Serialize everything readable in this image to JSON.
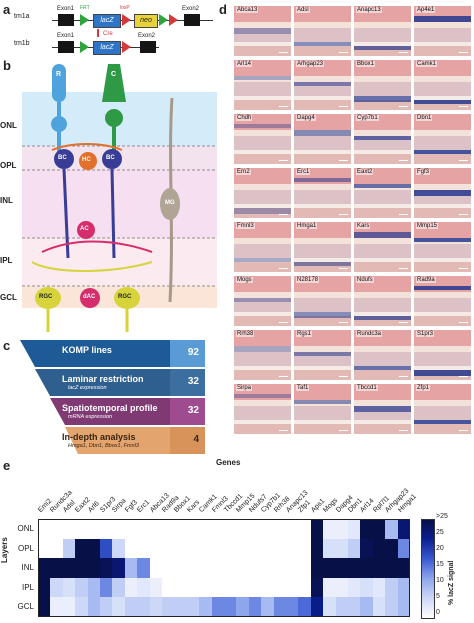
{
  "panels": {
    "a": "a",
    "b": "b",
    "c": "c",
    "d": "d",
    "e": "e"
  },
  "panel_a": {
    "tm1a": {
      "label": "tm1a",
      "exon1": "Exon1",
      "exon2": "Exon2",
      "lacz": "lacZ",
      "neo": "neo",
      "frt": "FRT",
      "loxp": "loxP"
    },
    "arrow": "Cre",
    "tm1b": {
      "label": "tm1b",
      "exon1": "Exon1",
      "exon2": "Exon2",
      "lacz": "lacZ"
    }
  },
  "panel_b": {
    "layers": [
      "ONL",
      "OPL",
      "INL",
      "IPL",
      "GCL"
    ],
    "cells": {
      "rod": "R",
      "cone": "C",
      "bc": "BC",
      "hc": "HC",
      "mg": "MG",
      "ac": "AC",
      "rgc": "RGC",
      "dac": "dAC"
    }
  },
  "panel_c": {
    "levels": [
      {
        "title": "KOMP lines",
        "subtitle": "",
        "count": "92"
      },
      {
        "title": "Laminar restriction",
        "subtitle": "lacZ expression",
        "count": "32"
      },
      {
        "title": "Spatiotemporal profile",
        "subtitle": "mRNA expression",
        "count": "32"
      },
      {
        "title": "In-depth analysis",
        "subtitle": "Hmga1, Dbn1, Bbox1, Fmnl3",
        "count": "4"
      }
    ],
    "colors": [
      "#5b9bd5",
      "#3c6ea0",
      "#9e4c8f",
      "#d8935a"
    ]
  },
  "panel_d": {
    "genes": [
      "Abca13",
      "Adsl",
      "Anapc13",
      "Ap4e1",
      "Arl14",
      "Arhgap23",
      "Bbox1",
      "Camk1",
      "Chdh",
      "Dapg4",
      "Cyp7b1",
      "Dbn1",
      "Ern2",
      "Erc1",
      "Eaxt2",
      "Fgf3",
      "Fmnl3",
      "Hmga1",
      "Kars",
      "Mmp15",
      "Mogs",
      "N28178",
      "Ndufs",
      "Rad9a",
      "Rrh38",
      "Rgs1",
      "Rundc3a",
      "S1pr3",
      "Sirpa",
      "Taf1",
      "Tbccd1",
      "Zfp1"
    ]
  },
  "panel_e": {
    "title": "Genes",
    "row_axis": "Layers",
    "rows": [
      "ONL",
      "OPL",
      "INL",
      "IPL",
      "GCL"
    ],
    "columns": [
      "Emi2",
      "Rundc3a",
      "Adsl",
      "Eaxt2",
      "Arl6",
      "S1pr3",
      "Sirpa",
      "Fgf3",
      "Erc1",
      "Abca13",
      "Rad9a",
      "Bbox1",
      "Kars",
      "Camk1",
      "Fmnl3",
      "Tbccd1",
      "Mmp15",
      "Ndufs7",
      "Cyp7b1",
      "Rrh38",
      "Anapc13",
      "Zfp1",
      "Aps1",
      "Mogs",
      "Dapg4",
      "Dbn1",
      "Arl14",
      "Rpl7l1",
      "Arhgap23",
      "Hmga1"
    ],
    "colorbar_label": "% lacZ signal",
    "colorbar_ticks": [
      ">25",
      "25",
      "20",
      "15",
      "10",
      "5",
      "0"
    ]
  },
  "chart_data": {
    "type": "heatmap",
    "title": "Genes",
    "xlabel": "Genes",
    "ylabel": "Layers",
    "rows": [
      "ONL",
      "OPL",
      "INL",
      "IPL",
      "GCL"
    ],
    "columns": [
      "Emi2",
      "Rundc3a",
      "Adsl",
      "Eaxt2",
      "Arl6",
      "S1pr3",
      "Sirpa",
      "Fgf3",
      "Erc1",
      "Abca13",
      "Rad9a",
      "Bbox1",
      "Kars",
      "Camk1",
      "Fmnl3",
      "Tbccd1",
      "Mmp15",
      "Ndufs7",
      "Cyp7b1",
      "Rrh38",
      "Anapc13",
      "Zfp1",
      "Aps1",
      "Mogs",
      "Dapg4",
      "Dbn1",
      "Arl14",
      "Rpl7l1",
      "Arhgap23",
      "Hmga1"
    ],
    "values": [
      [
        0,
        0,
        0,
        0,
        0,
        0,
        0,
        0,
        0,
        0,
        0,
        0,
        0,
        0,
        0,
        0,
        0,
        0,
        0,
        0,
        0,
        0,
        28,
        2,
        2,
        3,
        28,
        28,
        8,
        22
      ],
      [
        0,
        0,
        6,
        28,
        28,
        16,
        5,
        0,
        0,
        0,
        0,
        0,
        0,
        0,
        0,
        0,
        0,
        0,
        0,
        0,
        0,
        0,
        28,
        4,
        4,
        6,
        24,
        28,
        28,
        12
      ],
      [
        28,
        28,
        28,
        28,
        28,
        24,
        22,
        8,
        12,
        0,
        0,
        0,
        0,
        0,
        0,
        0,
        0,
        0,
        0,
        0,
        0,
        0,
        28,
        28,
        28,
        28,
        28,
        28,
        28,
        28
      ],
      [
        28,
        5,
        4,
        6,
        8,
        12,
        6,
        2,
        3,
        2,
        0,
        0,
        0,
        0,
        0,
        0,
        0,
        0,
        0,
        0,
        0,
        0,
        24,
        2,
        2,
        3,
        4,
        3,
        6,
        8
      ],
      [
        28,
        2,
        2,
        5,
        8,
        6,
        4,
        6,
        6,
        5,
        6,
        6,
        6,
        8,
        12,
        12,
        10,
        12,
        8,
        12,
        12,
        14,
        20,
        4,
        6,
        6,
        8,
        4,
        6,
        8
      ]
    ],
    "scale": {
      "min": 0,
      "max": 25
    }
  }
}
